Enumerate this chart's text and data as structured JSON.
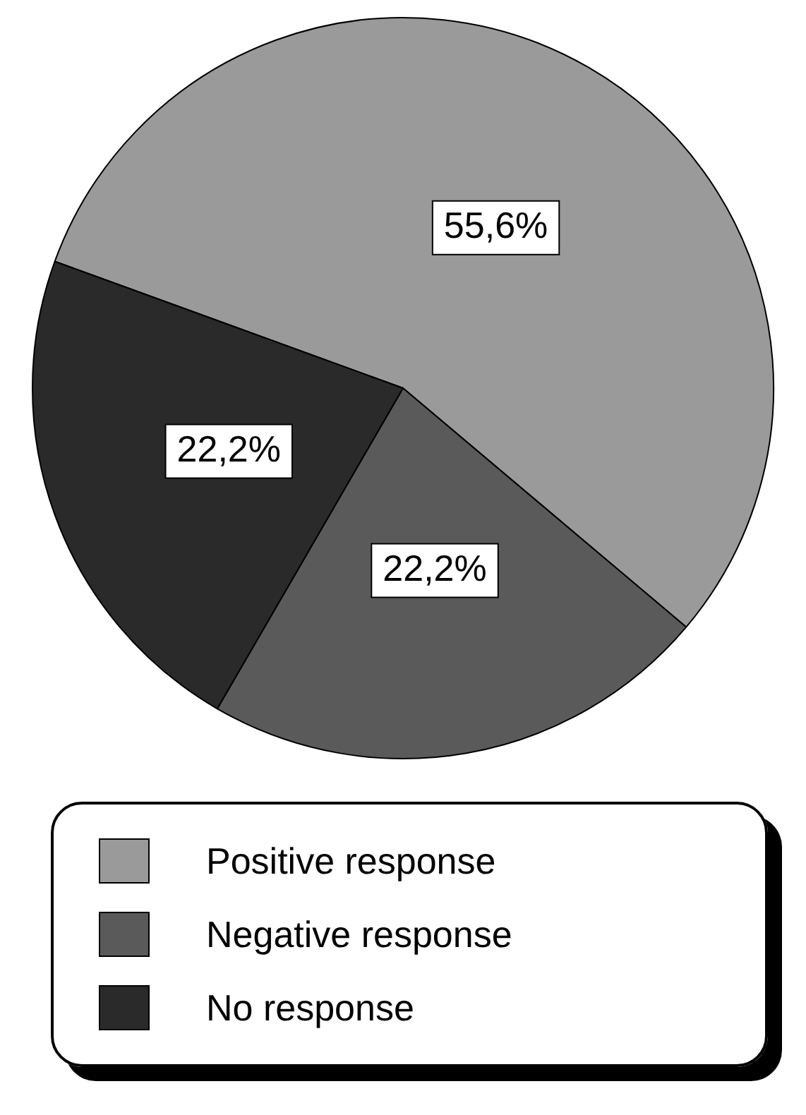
{
  "chart_data": {
    "type": "pie",
    "categories": [
      "Positive response",
      "Negative response",
      "No response"
    ],
    "values": [
      55.6,
      22.2,
      22.2
    ],
    "colors": [
      "#9a9a9a",
      "#5a5a5a",
      "#2a2a2a"
    ],
    "value_labels": [
      "55,6%",
      "22,2%",
      "22,2%"
    ],
    "legend": "bottom"
  }
}
